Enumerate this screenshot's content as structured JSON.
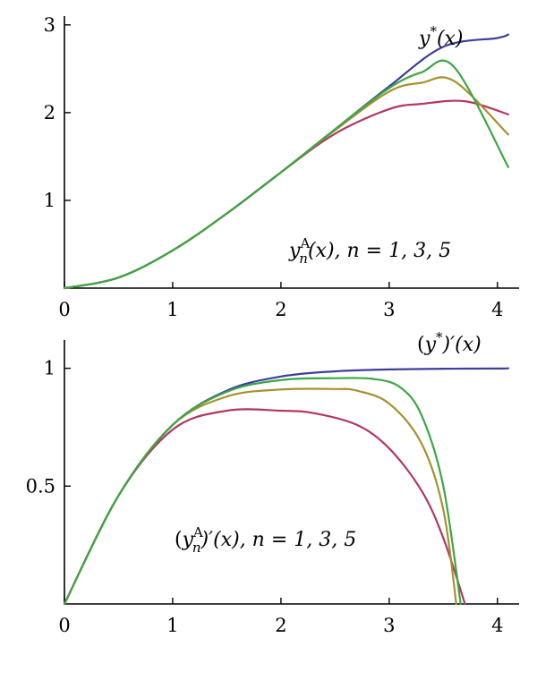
{
  "chart_data": [
    {
      "type": "line",
      "xlim": [
        0,
        4.2
      ],
      "ylim": [
        0,
        3.1
      ],
      "x_ticks": [
        "0",
        "1",
        "2",
        "3",
        "4"
      ],
      "y_ticks": [
        "1",
        "2",
        "3"
      ],
      "grid": false,
      "annotations": {
        "exact": {
          "label": "y*(x)",
          "base": "y",
          "sup": "*",
          "rest": "(x)"
        },
        "approx": {
          "label": "y_n^A(x), n = 1, 3, 5",
          "base": "y",
          "sup": "A",
          "sub": "n",
          "rest": "(x), n = 1, 3, 5"
        }
      },
      "series": [
        {
          "color": "#3c3f9c",
          "x": [
            0,
            0.5,
            1,
            1.5,
            2,
            2.5,
            3,
            3.5,
            4,
            4.1
          ],
          "y": [
            0,
            0.12,
            0.43,
            0.85,
            1.32,
            1.81,
            2.3,
            2.75,
            2.85,
            2.89
          ]
        },
        {
          "color": "#b2385e",
          "x": [
            0,
            0.5,
            1,
            1.5,
            2,
            2.5,
            3,
            3.3,
            3.7,
            4.1
          ],
          "y": [
            0,
            0.12,
            0.43,
            0.85,
            1.32,
            1.76,
            2.04,
            2.1,
            2.13,
            1.98
          ]
        },
        {
          "color": "#a89030",
          "x": [
            0,
            0.5,
            1,
            1.5,
            2,
            2.5,
            3,
            3.3,
            3.6,
            4.1
          ],
          "y": [
            0,
            0.12,
            0.43,
            0.85,
            1.32,
            1.8,
            2.24,
            2.34,
            2.36,
            1.75
          ]
        },
        {
          "color": "#3da645",
          "x": [
            0,
            0.5,
            1,
            1.5,
            2,
            2.5,
            3,
            3.3,
            3.6,
            4.1
          ],
          "y": [
            0,
            0.12,
            0.43,
            0.85,
            1.32,
            1.81,
            2.28,
            2.46,
            2.52,
            1.38
          ]
        }
      ]
    },
    {
      "type": "line",
      "xlim": [
        0,
        4.2
      ],
      "ylim": [
        0,
        1.12
      ],
      "x_ticks": [
        "0",
        "1",
        "2",
        "3",
        "4"
      ],
      "y_ticks": [
        "0.5",
        "1"
      ],
      "grid": false,
      "annotations": {
        "exact": {
          "label": "(y*)′(x)",
          "pre": "(",
          "base": "y",
          "sup": "*",
          "rest": ")′(x)"
        },
        "approx": {
          "label": "(y_n^A)′(x), n = 1, 3, 5",
          "pre": "(",
          "base": "y",
          "sup": "A",
          "sub": "n",
          "rest": ")′(x), n = 1, 3, 5"
        }
      },
      "series": [
        {
          "color": "#3c3f9c",
          "x": [
            0,
            0.5,
            1,
            1.5,
            2,
            2.5,
            3,
            3.5,
            4,
            4.1
          ],
          "y": [
            0,
            0.46,
            0.76,
            0.905,
            0.965,
            0.987,
            0.995,
            0.998,
            0.999,
            1.0
          ]
        },
        {
          "color": "#b2385e",
          "x": [
            0,
            0.5,
            1,
            1.5,
            2,
            2.3,
            2.7,
            3.0,
            3.3,
            3.5,
            3.7
          ],
          "y": [
            0,
            0.46,
            0.74,
            0.82,
            0.82,
            0.81,
            0.76,
            0.66,
            0.48,
            0.28,
            0
          ]
        },
        {
          "color": "#a89030",
          "x": [
            0,
            0.5,
            1,
            1.5,
            2,
            2.5,
            2.7,
            3.0,
            3.3,
            3.5,
            3.62
          ],
          "y": [
            0,
            0.46,
            0.76,
            0.88,
            0.91,
            0.912,
            0.905,
            0.85,
            0.68,
            0.4,
            0
          ]
        },
        {
          "color": "#3da645",
          "x": [
            0,
            0.5,
            1,
            1.5,
            2,
            2.5,
            2.85,
            3.1,
            3.3,
            3.5,
            3.66
          ],
          "y": [
            0,
            0.46,
            0.76,
            0.9,
            0.95,
            0.958,
            0.955,
            0.92,
            0.8,
            0.5,
            0
          ]
        }
      ]
    }
  ]
}
